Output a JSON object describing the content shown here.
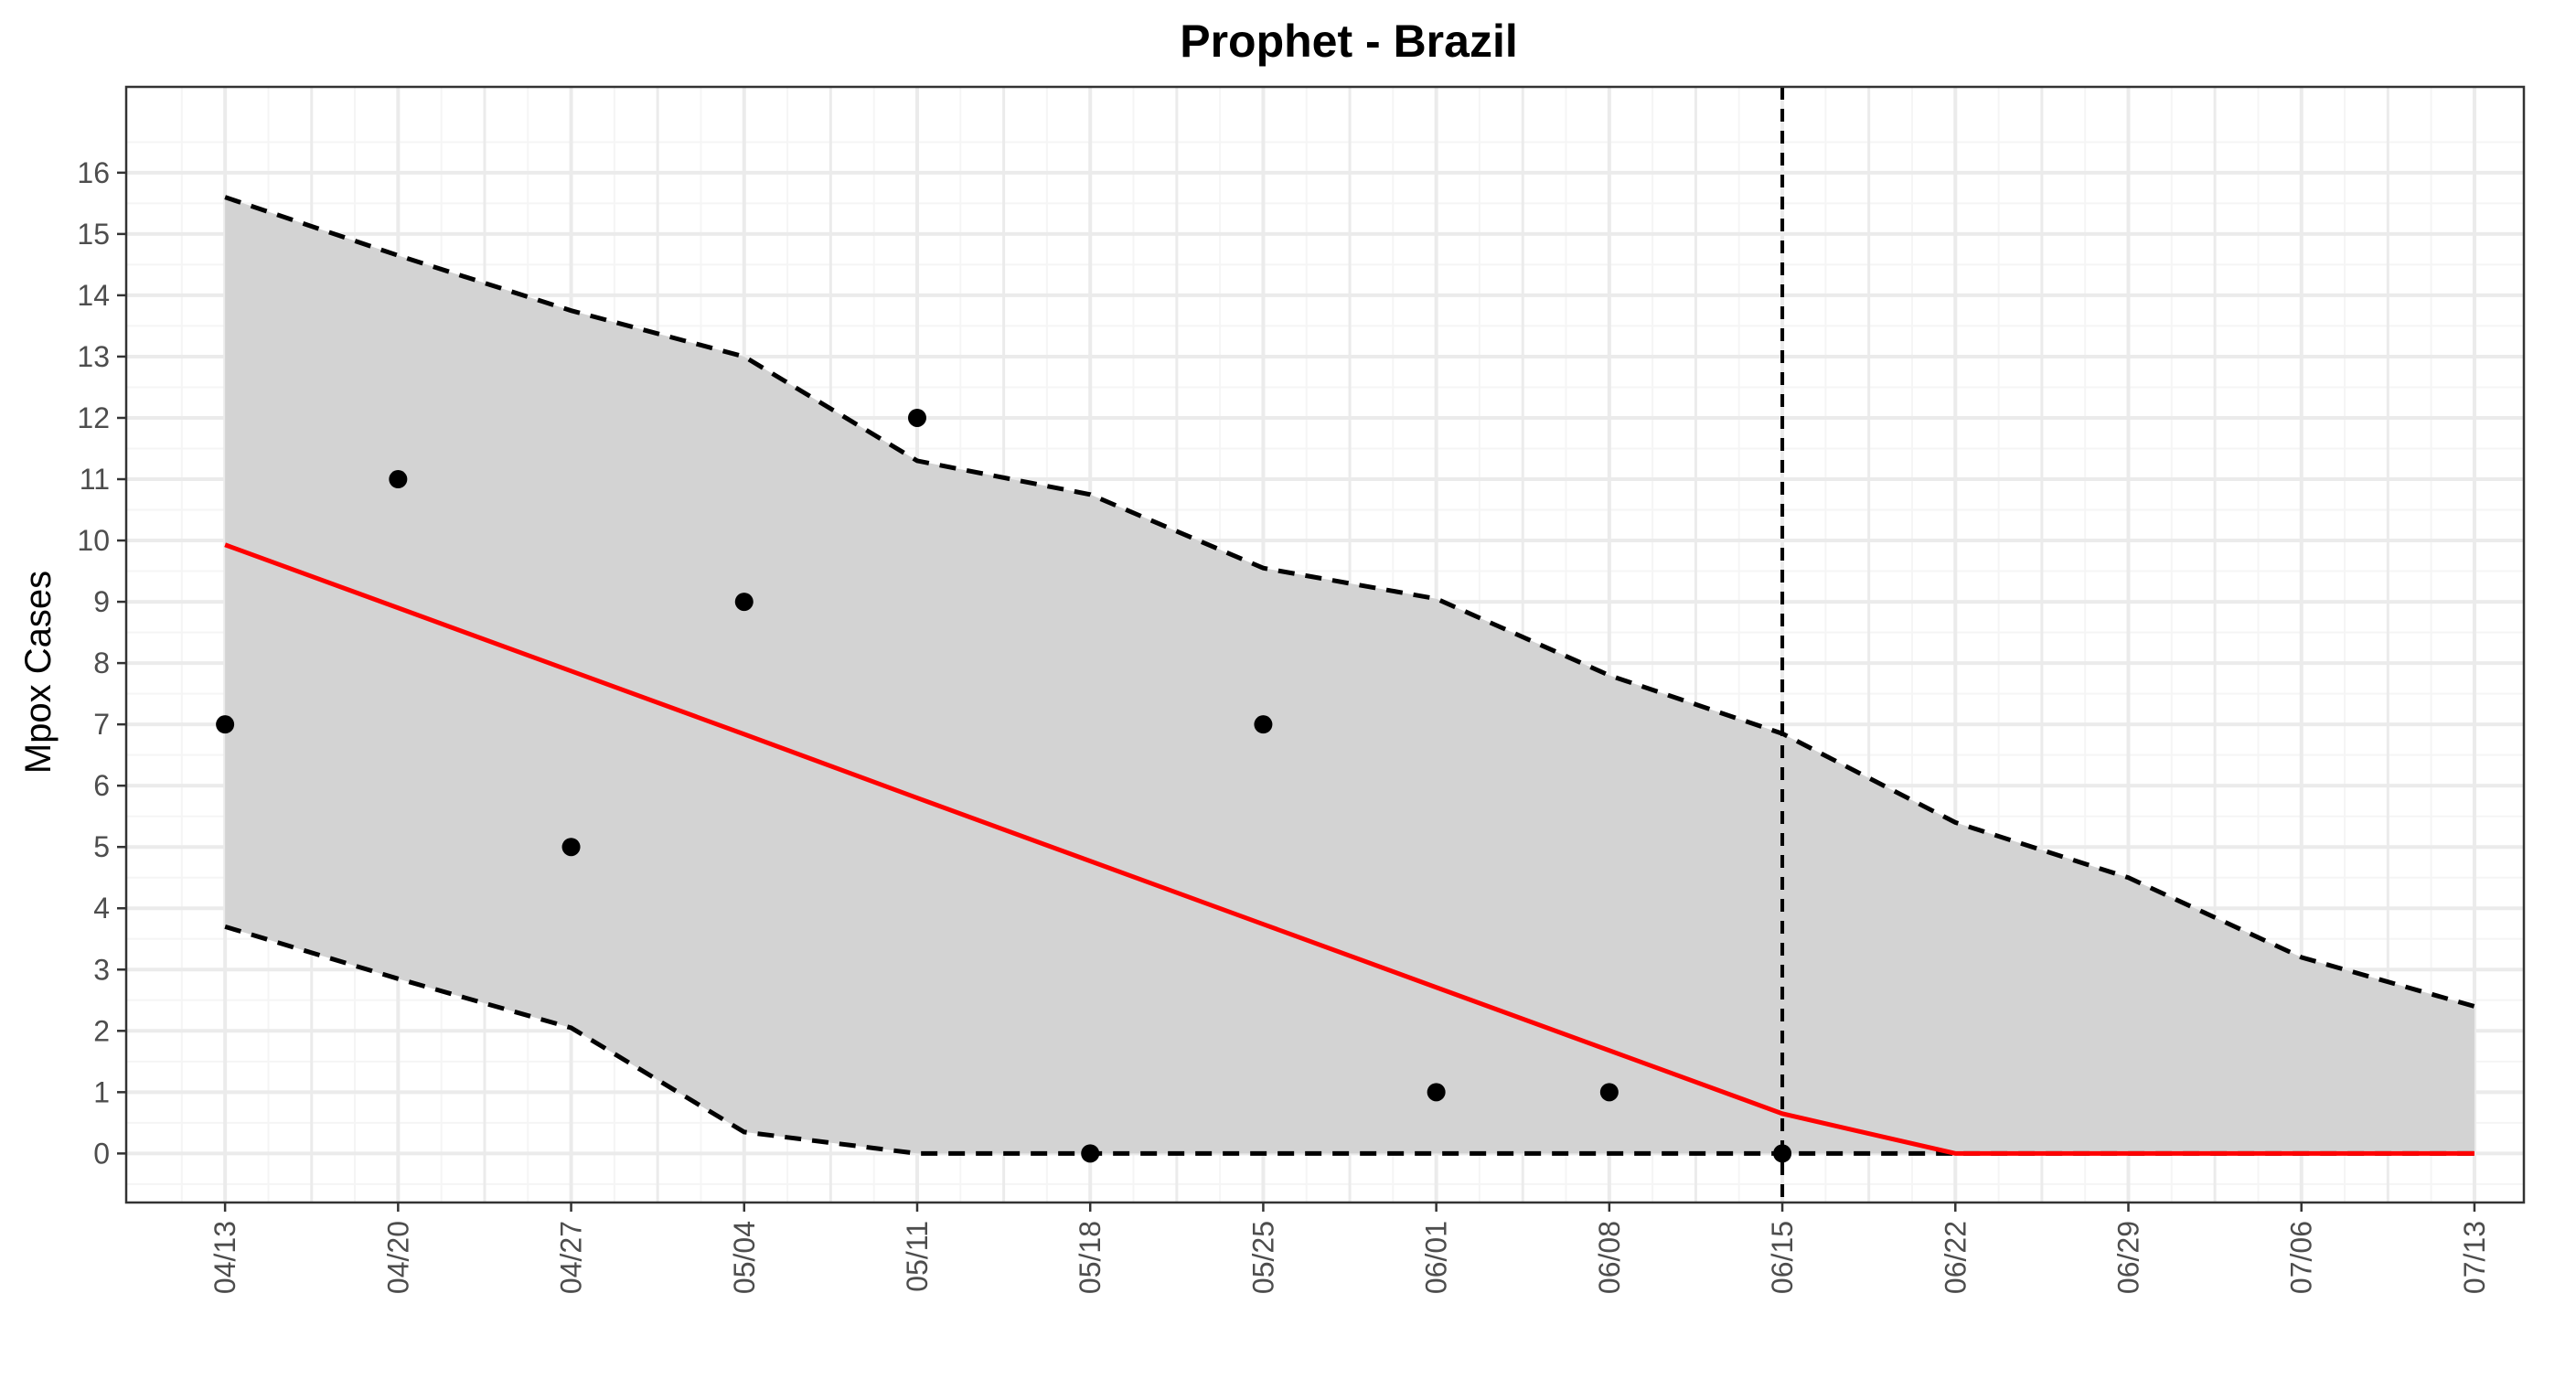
{
  "chart_data": {
    "type": "line",
    "title": "Prophet - Brazil",
    "xlabel": "",
    "ylabel": "Mpox Cases",
    "x_tick_labels": [
      "04/13",
      "04/20",
      "04/27",
      "05/04",
      "05/11",
      "05/18",
      "05/25",
      "06/01",
      "06/08",
      "06/15",
      "06/22",
      "06/29",
      "07/06",
      "07/13"
    ],
    "xlim": [
      "04/09",
      "07/15"
    ],
    "ylim": [
      -0.8,
      17.4
    ],
    "y_ticks": [
      0,
      1,
      2,
      3,
      4,
      5,
      6,
      7,
      8,
      9,
      10,
      11,
      12,
      13,
      14,
      15,
      16
    ],
    "grid": true,
    "observed": {
      "x": [
        "04/13",
        "04/20",
        "04/27",
        "05/04",
        "05/11",
        "05/18",
        "05/25",
        "06/01",
        "06/08",
        "06/15"
      ],
      "y": [
        7,
        11,
        5,
        9,
        12,
        0,
        7,
        1,
        1,
        0
      ]
    },
    "forecast": {
      "x": [
        "04/13",
        "04/20",
        "04/27",
        "05/04",
        "05/11",
        "05/18",
        "05/25",
        "06/01",
        "06/08",
        "06/15",
        "06/22",
        "06/29",
        "07/06",
        "07/13"
      ],
      "y": [
        9.93,
        8.9,
        7.87,
        6.84,
        5.8,
        4.77,
        3.74,
        2.71,
        1.68,
        0.65,
        0,
        0,
        0,
        0
      ],
      "upper": [
        15.6,
        14.65,
        13.75,
        13.0,
        11.3,
        10.75,
        9.55,
        9.05,
        7.8,
        6.85,
        5.4,
        4.5,
        3.2,
        2.4
      ],
      "lower": [
        3.7,
        2.85,
        2.05,
        0.35,
        0,
        0,
        0,
        0,
        0,
        0,
        0,
        0,
        0,
        0
      ]
    },
    "forecast_start": "06/15",
    "colors": {
      "band": "#d3d3d3",
      "forecast_line": "#ff0000",
      "bounds": "#000000",
      "points": "#000000",
      "grid_major": "#ebebeb",
      "grid_minor": "#f5f5f5",
      "panel_border": "#333333"
    }
  }
}
